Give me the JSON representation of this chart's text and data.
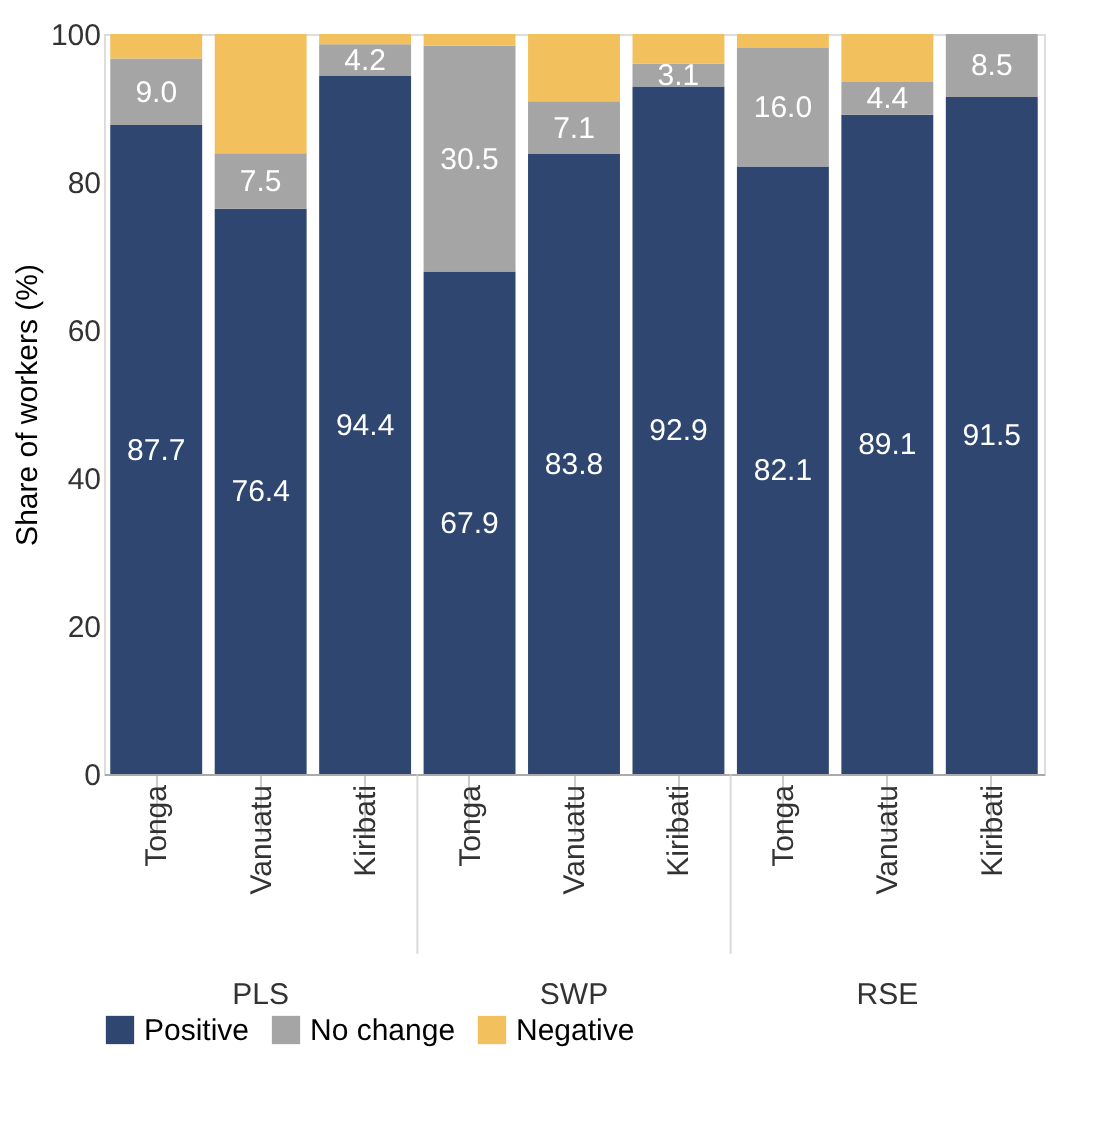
{
  "chart_data": {
    "type": "bar",
    "stacked": true,
    "ylabel": "Share of workers (%)",
    "categories": [
      "Tonga",
      "Vanuatu",
      "Kiribati",
      "Tonga",
      "Vanuatu",
      "Kiribati",
      "Tonga",
      "Vanuatu",
      "Kiribati"
    ],
    "annotations": [
      "PLS",
      "SWP",
      "RSE"
    ],
    "series": [
      {
        "name": "Positive",
        "color": "#2e4670",
        "values": [
          87.7,
          76.4,
          94.4,
          67.9,
          83.8,
          92.9,
          82.1,
          89.1,
          91.5
        ],
        "value_labels": [
          "87.7",
          "76.4",
          "94.4",
          "67.9",
          "83.8",
          "92.9",
          "82.1",
          "89.1",
          "91.5"
        ]
      },
      {
        "name": "No change",
        "color": "#a5a5a5",
        "values": [
          9.0,
          7.5,
          4.2,
          30.5,
          7.1,
          3.1,
          16.0,
          4.4,
          8.5
        ],
        "value_labels": [
          "9.0",
          "7.5",
          "4.2",
          "30.5",
          "7.1",
          "3.1",
          "16.0",
          "4.4",
          "8.5"
        ]
      },
      {
        "name": "Negative",
        "color": "#f2c05c",
        "values": [
          3.3,
          16.1,
          1.4,
          1.6,
          9.1,
          4.0,
          1.9,
          6.5,
          0.0
        ]
      }
    ],
    "ylim": [
      0,
      100
    ],
    "yticks": [
      0,
      20,
      40,
      60,
      80,
      100
    ],
    "grid": false,
    "legend": "bottom"
  }
}
